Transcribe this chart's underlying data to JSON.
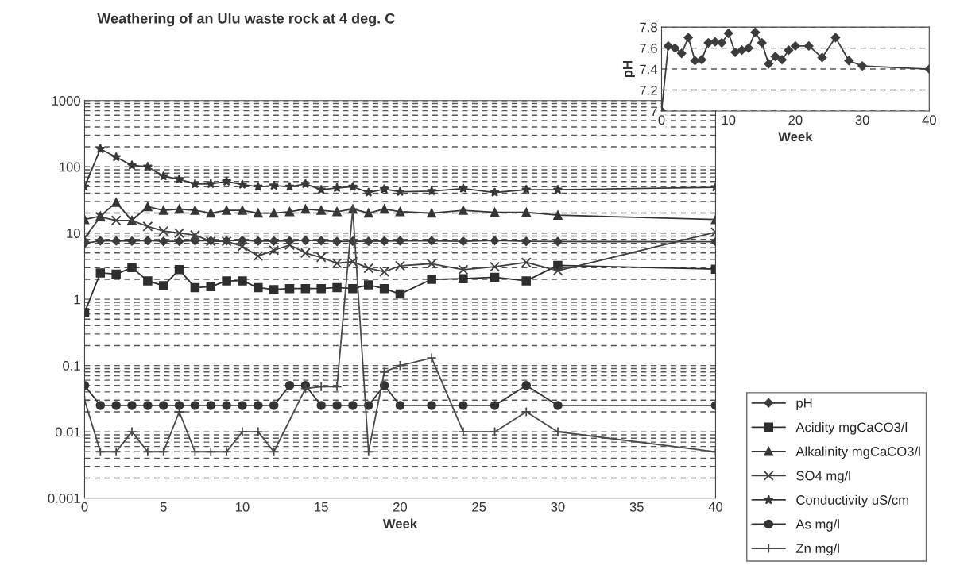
{
  "chart_data": [
    {
      "type": "line",
      "title": "Weathering of an Ulu waste rock at 4 deg. C",
      "xlabel": "Week",
      "x": [
        0,
        1,
        2,
        3,
        4,
        5,
        6,
        7,
        8,
        9,
        10,
        11,
        12,
        13,
        14,
        15,
        16,
        17,
        18,
        19,
        20,
        22,
        24,
        26,
        28,
        30,
        40
      ],
      "xlim": [
        0,
        40
      ],
      "xticks": [
        0,
        5,
        10,
        15,
        20,
        25,
        30,
        35,
        40
      ],
      "log": "y",
      "ylim": [
        0.001,
        1000
      ],
      "yticks": [
        0.001,
        0.01,
        0.1,
        1,
        10,
        100,
        1000
      ],
      "grid": "y",
      "legend": "right",
      "line_style": "solid",
      "series": [
        {
          "name": "pH",
          "color": "#3c3c3c",
          "marker": "diamond",
          "values": [
            7.0,
            7.62,
            7.6,
            7.55,
            7.7,
            7.48,
            7.49,
            7.65,
            7.66,
            7.65,
            7.74,
            7.56,
            7.58,
            7.6,
            7.75,
            7.65,
            7.45,
            7.52,
            7.49,
            7.58,
            7.62,
            7.62,
            7.51,
            7.7,
            7.48,
            7.43,
            7.4
          ]
        },
        {
          "name": "Acidity mgCaCO3/l",
          "color": "#2e2e2e",
          "marker": "square",
          "values": [
            0.63,
            2.5,
            2.4,
            3.0,
            1.9,
            1.6,
            2.8,
            1.5,
            1.55,
            1.9,
            1.9,
            1.5,
            1.4,
            1.45,
            1.45,
            1.45,
            1.5,
            1.45,
            1.65,
            1.45,
            1.2,
            2.0,
            2.05,
            2.15,
            1.9,
            3.25,
            2.85
          ]
        },
        {
          "name": "Alkalinity mgCaCO3/l",
          "color": "#363636",
          "marker": "triangle",
          "values": [
            16,
            18,
            29,
            15.5,
            25,
            22,
            23,
            22,
            20,
            22,
            22,
            20,
            20,
            21,
            23,
            22,
            21,
            23,
            20,
            23,
            21,
            20,
            22,
            20.5,
            20.5,
            18.6,
            16
          ]
        },
        {
          "name": "SO4 mg/l",
          "color": "#404040",
          "marker": "cross",
          "values": [
            8.5,
            17.5,
            15.5,
            15.5,
            12.6,
            10.7,
            10,
            9.3,
            7.5,
            7.5,
            6.3,
            4.5,
            5.5,
            6.6,
            5.0,
            4.3,
            3.5,
            3.7,
            2.95,
            2.6,
            3.2,
            3.45,
            2.8,
            3.1,
            3.6,
            2.7,
            10.3
          ]
        },
        {
          "name": "Conductivity uS/cm",
          "color": "#383838",
          "marker": "star",
          "values": [
            50,
            186,
            140,
            105,
            100,
            72,
            65,
            55,
            55,
            60,
            54,
            50,
            52,
            50,
            55,
            45,
            48,
            50,
            41,
            46,
            42,
            43,
            47,
            41,
            45,
            45,
            49
          ]
        },
        {
          "name": "As mg/l",
          "color": "#333333",
          "marker": "circle",
          "values": [
            0.05,
            0.025,
            0.025,
            0.025,
            0.025,
            0.025,
            0.025,
            0.025,
            0.025,
            0.025,
            0.025,
            0.025,
            0.025,
            0.05,
            0.05,
            0.025,
            0.025,
            0.025,
            0.025,
            0.05,
            0.025,
            0.025,
            0.025,
            0.025,
            0.05,
            0.025,
            0.025
          ]
        },
        {
          "name": "Zn mg/l",
          "color": "#4a4a4a",
          "marker": "plus",
          "x": [
            0,
            1,
            2,
            3,
            4,
            5,
            6,
            7,
            8,
            9,
            10,
            11,
            12,
            14,
            15,
            16,
            17,
            18,
            19,
            20,
            22,
            24,
            26,
            28,
            30,
            40
          ],
          "values": [
            0.03,
            0.005,
            0.005,
            0.01,
            0.005,
            0.005,
            0.02,
            0.005,
            0.005,
            0.005,
            0.01,
            0.01,
            0.005,
            0.045,
            0.048,
            0.048,
            23,
            0.005,
            0.08,
            0.1,
            0.13,
            0.01,
            0.01,
            0.02,
            0.01,
            0.005
          ]
        }
      ]
    },
    {
      "type": "line",
      "xlabel": "Week",
      "ylabel": "pH",
      "x": [
        0,
        1,
        2,
        3,
        4,
        5,
        6,
        7,
        8,
        9,
        10,
        11,
        12,
        13,
        14,
        15,
        16,
        17,
        18,
        19,
        20,
        22,
        24,
        26,
        28,
        30,
        40
      ],
      "xlim": [
        0,
        40
      ],
      "xticks": [
        0,
        10,
        20,
        30,
        40
      ],
      "ylim": [
        7,
        7.8
      ],
      "yticks": [
        7,
        7.2,
        7.4,
        7.6,
        7.8
      ],
      "grid": "y",
      "line_style": "solid",
      "series": [
        {
          "color": "#3c3c3c",
          "marker": "diamond",
          "values": [
            7.0,
            7.62,
            7.6,
            7.55,
            7.7,
            7.48,
            7.49,
            7.65,
            7.66,
            7.65,
            7.74,
            7.56,
            7.58,
            7.6,
            7.75,
            7.65,
            7.45,
            7.52,
            7.49,
            7.58,
            7.62,
            7.62,
            7.51,
            7.7,
            7.48,
            7.43,
            7.4
          ]
        }
      ]
    }
  ]
}
